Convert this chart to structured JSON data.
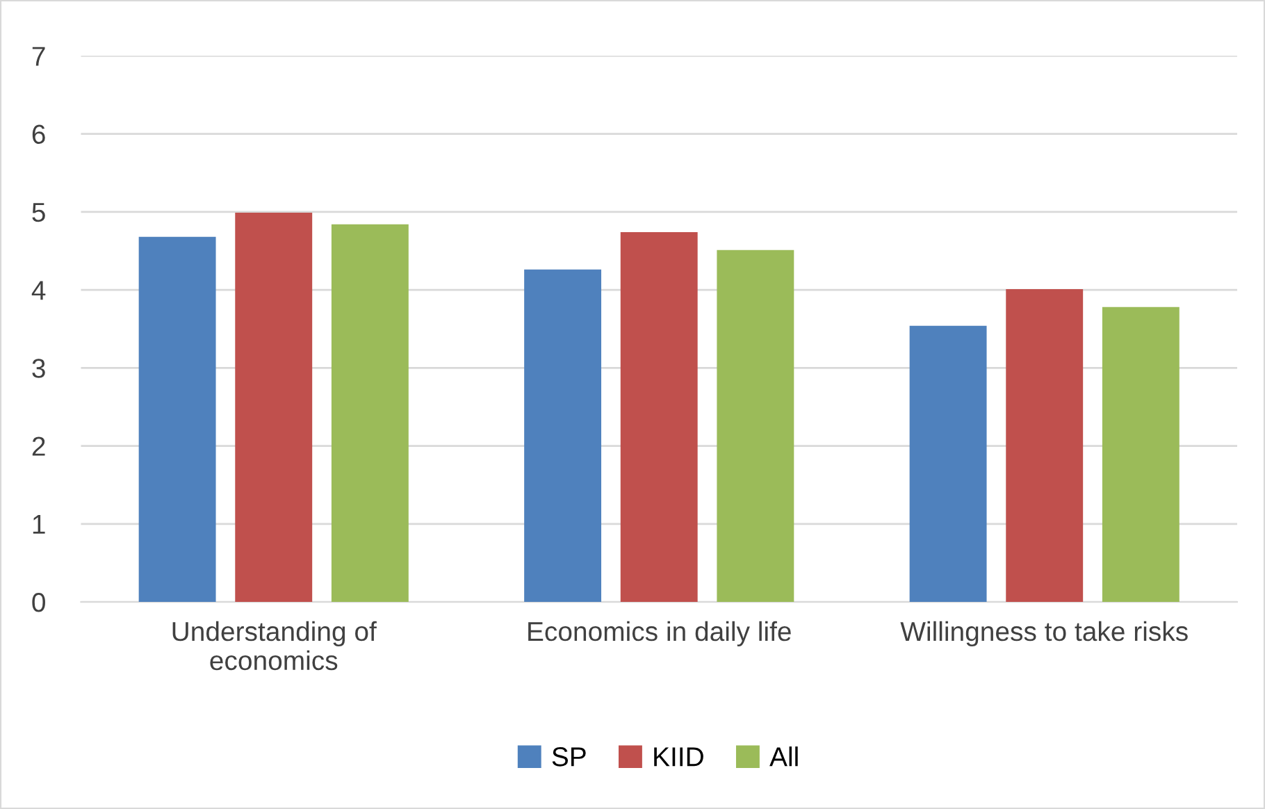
{
  "chart_data": {
    "type": "bar",
    "categories": [
      "Understanding of\neconomics",
      "Economics in daily life",
      "Willingness to take risks"
    ],
    "series": [
      {
        "name": "SP",
        "color": "#4f81bd",
        "values": [
          4.68,
          4.26,
          3.54
        ]
      },
      {
        "name": "KIID",
        "color": "#c0504d",
        "values": [
          4.99,
          4.74,
          4.01
        ]
      },
      {
        "name": "All",
        "color": "#9bbb59",
        "values": [
          4.84,
          4.51,
          3.78
        ]
      }
    ],
    "ylim": [
      0,
      7
    ],
    "yticks": [
      0,
      1,
      2,
      3,
      4,
      5,
      6,
      7
    ],
    "grid": "y",
    "legend": "bottom"
  }
}
